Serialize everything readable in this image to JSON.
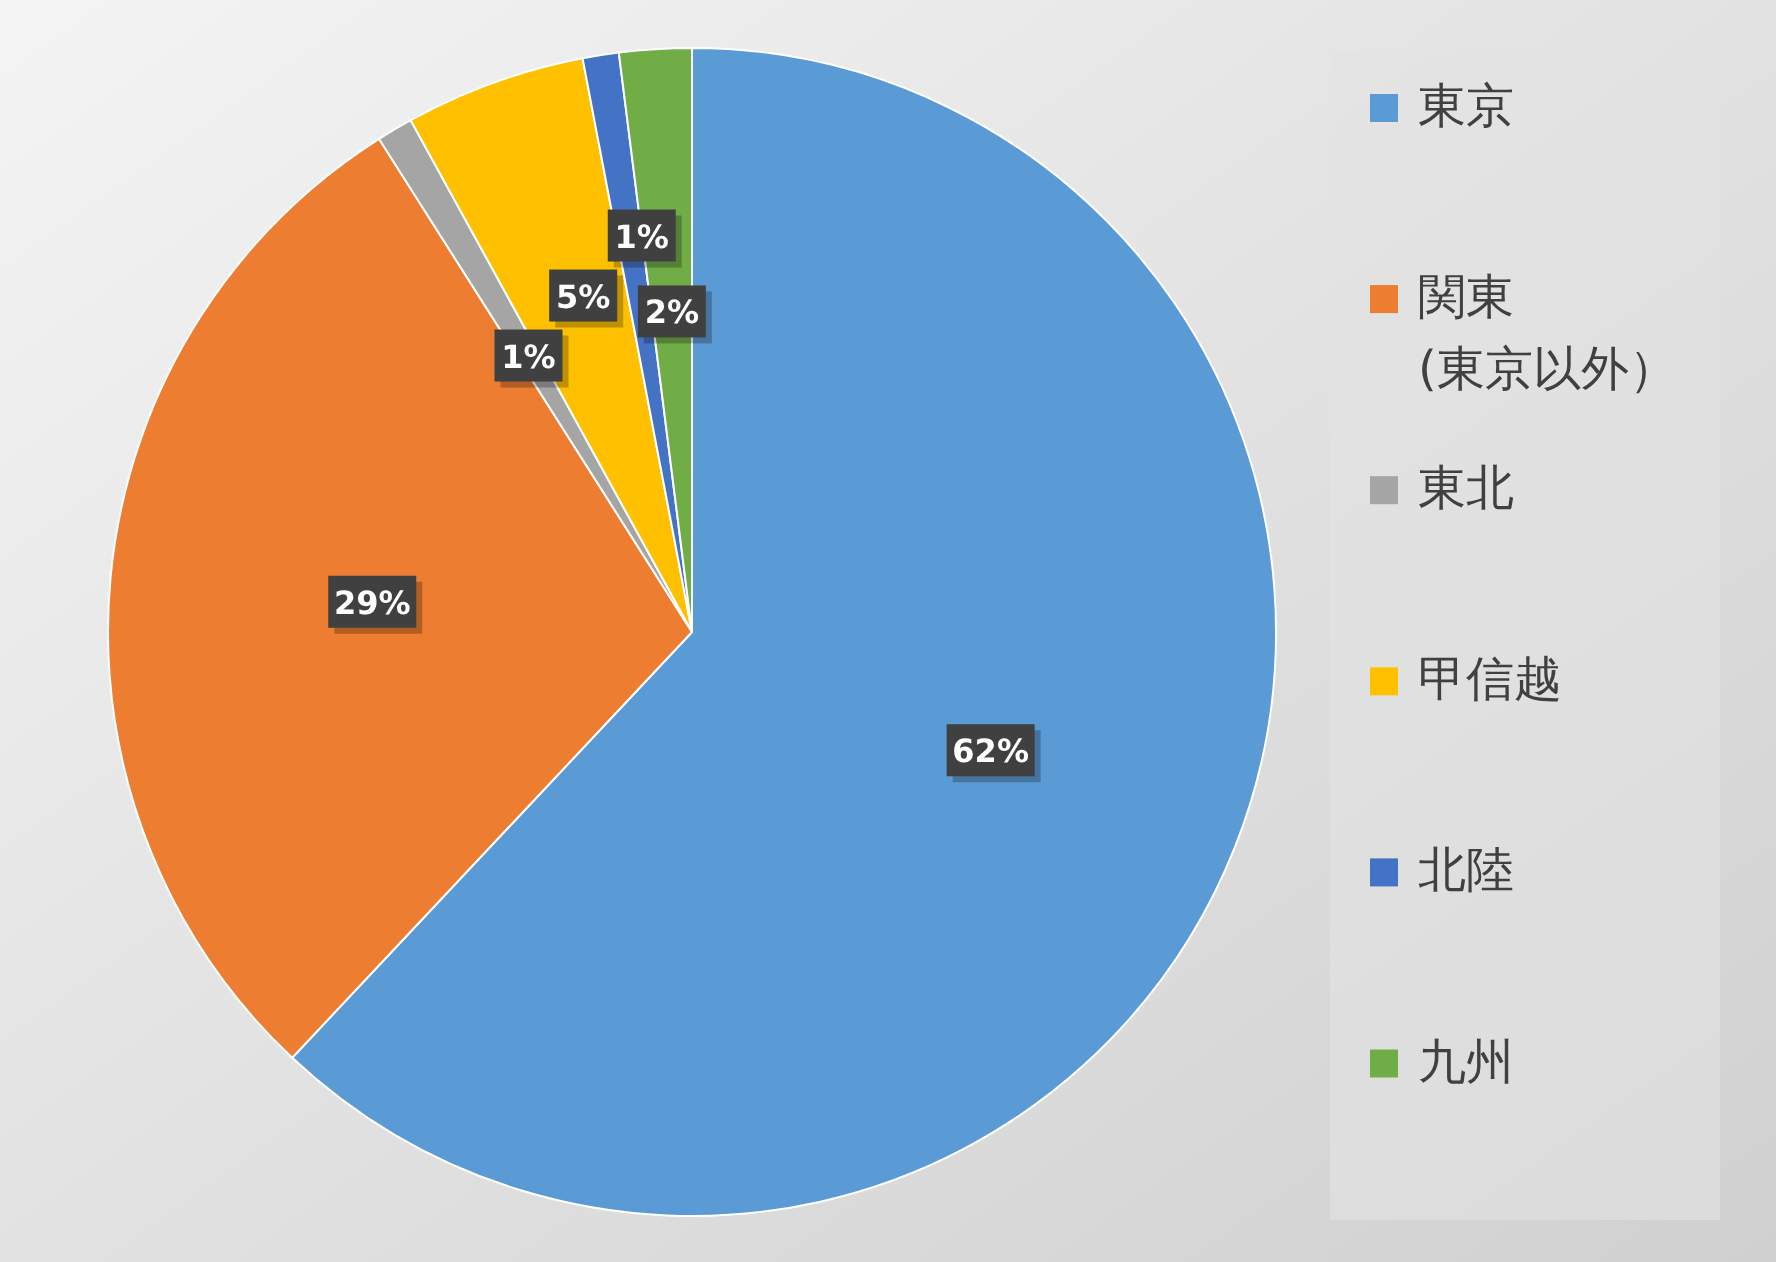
{
  "chart_data": {
    "type": "pie",
    "categories": [
      "東京",
      "関東\n(東京以外）",
      "東北",
      "甲信越",
      "北陸",
      "九州"
    ],
    "values": [
      62,
      29,
      1,
      5,
      1,
      2
    ],
    "colors": [
      "#5b9bd5",
      "#ed7d31",
      "#a5a5a5",
      "#ffc000",
      "#4472c4",
      "#70ad47"
    ],
    "value_labels": [
      "62%",
      "29%",
      "1%",
      "5%",
      "1%",
      "2%"
    ],
    "legend": "right"
  }
}
